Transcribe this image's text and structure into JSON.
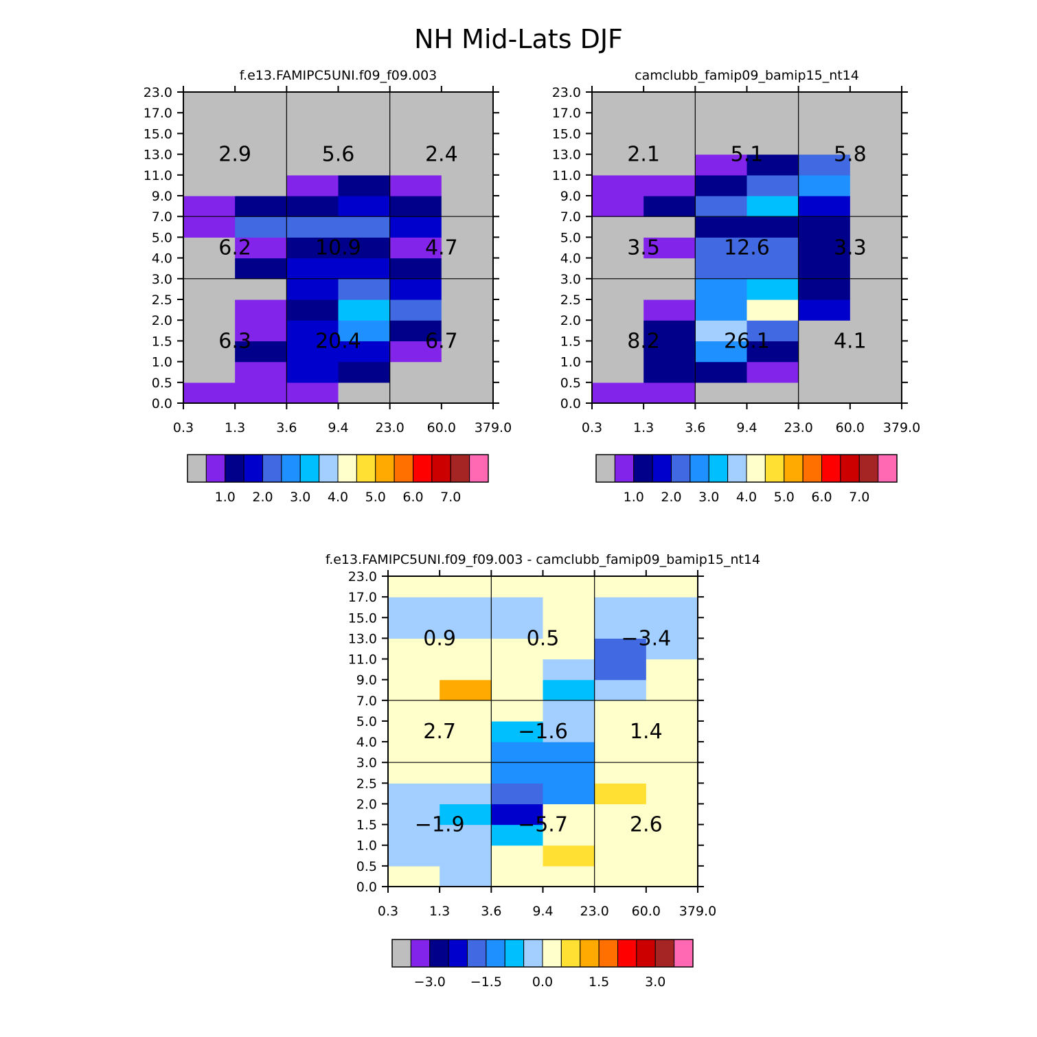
{
  "figure": {
    "title": "NH Mid-Lats DJF"
  },
  "colors": {
    "palette": [
      "#bebebe",
      "#8224ea",
      "#00008b",
      "#0000cd",
      "#4169e1",
      "#1e90ff",
      "#00bfff",
      "#a2cfff",
      "#ffffcc",
      "#ffe033",
      "#ffaa00",
      "#ff7000",
      "#ff0000",
      "#cd0000",
      "#a52424",
      "#ff69b4"
    ]
  },
  "chart_data": [
    {
      "type": "heatmap",
      "title": "f.e13.FAMIPC5UNI.f09_f09.003",
      "x_tick_labels": [
        "0.3",
        "1.3",
        "3.6",
        "9.4",
        "23.0",
        "60.0",
        "379.0"
      ],
      "y_tick_labels": [
        "0.0",
        "0.5",
        "1.0",
        "1.5",
        "2.0",
        "2.5",
        "3.0",
        "4.0",
        "5.0",
        "7.0",
        "9.0",
        "11.0",
        "13.0",
        "15.0",
        "17.0",
        "23.0"
      ],
      "cell_color_index_rows_bottom_to_top": [
        [
          1,
          1,
          1,
          0,
          0,
          0
        ],
        [
          0,
          1,
          3,
          2,
          0,
          0
        ],
        [
          0,
          2,
          3,
          3,
          1,
          0
        ],
        [
          0,
          1,
          3,
          5,
          2,
          0
        ],
        [
          0,
          1,
          2,
          6,
          4,
          0
        ],
        [
          0,
          0,
          3,
          4,
          3,
          0
        ],
        [
          0,
          2,
          3,
          3,
          2,
          0
        ],
        [
          0,
          1,
          2,
          2,
          1,
          0
        ],
        [
          1,
          4,
          4,
          4,
          3,
          0
        ],
        [
          1,
          2,
          2,
          3,
          2,
          0
        ],
        [
          0,
          0,
          1,
          2,
          1,
          0
        ],
        [
          0,
          0,
          0,
          0,
          0,
          0
        ],
        [
          0,
          0,
          0,
          0,
          0,
          0
        ],
        [
          0,
          0,
          0,
          0,
          0,
          0
        ],
        [
          0,
          0,
          0,
          0,
          0,
          0
        ]
      ],
      "region_values_bottom_to_top": [
        [
          "6.3",
          "20.4",
          "6.7"
        ],
        [
          "6.2",
          "10.9",
          "4.7"
        ],
        [
          "2.9",
          "5.6",
          "2.4"
        ]
      ],
      "colorbar_labels": [
        "1.0",
        "2.0",
        "3.0",
        "4.0",
        "5.0",
        "6.0",
        "7.0"
      ]
    },
    {
      "type": "heatmap",
      "title": "camclubb_famip09_bamip15_nt14",
      "x_tick_labels": [
        "0.3",
        "1.3",
        "3.6",
        "9.4",
        "23.0",
        "60.0",
        "379.0"
      ],
      "y_tick_labels": [
        "0.0",
        "0.5",
        "1.0",
        "1.5",
        "2.0",
        "2.5",
        "3.0",
        "4.0",
        "5.0",
        "7.0",
        "9.0",
        "11.0",
        "13.0",
        "15.0",
        "17.0",
        "23.0"
      ],
      "cell_color_index_rows_bottom_to_top": [
        [
          1,
          1,
          0,
          0,
          0,
          0
        ],
        [
          0,
          2,
          2,
          1,
          0,
          0
        ],
        [
          0,
          2,
          5,
          2,
          0,
          0
        ],
        [
          0,
          2,
          7,
          4,
          0,
          0
        ],
        [
          0,
          1,
          5,
          8,
          3,
          0
        ],
        [
          0,
          0,
          5,
          6,
          2,
          0
        ],
        [
          0,
          0,
          4,
          4,
          2,
          0
        ],
        [
          0,
          1,
          4,
          4,
          2,
          0
        ],
        [
          0,
          0,
          2,
          2,
          2,
          0
        ],
        [
          1,
          2,
          4,
          6,
          3,
          0
        ],
        [
          1,
          1,
          2,
          4,
          5,
          0
        ],
        [
          0,
          0,
          1,
          2,
          4,
          0
        ],
        [
          0,
          0,
          0,
          0,
          0,
          0
        ],
        [
          0,
          0,
          0,
          0,
          0,
          0
        ],
        [
          0,
          0,
          0,
          0,
          0,
          0
        ]
      ],
      "region_values_bottom_to_top": [
        [
          "8.2",
          "26.1",
          "4.1"
        ],
        [
          "3.5",
          "12.6",
          "3.3"
        ],
        [
          "2.1",
          "5.1",
          "5.8"
        ]
      ],
      "colorbar_labels": [
        "1.0",
        "2.0",
        "3.0",
        "4.0",
        "5.0",
        "6.0",
        "7.0"
      ]
    },
    {
      "type": "heatmap",
      "title": "f.e13.FAMIPC5UNI.f09_f09.003 - camclubb_famip09_bamip15_nt14",
      "x_tick_labels": [
        "0.3",
        "1.3",
        "3.6",
        "9.4",
        "23.0",
        "60.0",
        "379.0"
      ],
      "y_tick_labels": [
        "0.0",
        "0.5",
        "1.0",
        "1.5",
        "2.0",
        "2.5",
        "3.0",
        "4.0",
        "5.0",
        "7.0",
        "9.0",
        "11.0",
        "13.0",
        "15.0",
        "17.0",
        "23.0"
      ],
      "cell_color_index_rows_bottom_to_top": [
        [
          8,
          7,
          8,
          8,
          8,
          8
        ],
        [
          7,
          7,
          8,
          9,
          8,
          8
        ],
        [
          7,
          7,
          6,
          8,
          8,
          8
        ],
        [
          7,
          6,
          3,
          8,
          8,
          8
        ],
        [
          7,
          7,
          4,
          5,
          9,
          8
        ],
        [
          8,
          8,
          5,
          5,
          8,
          8
        ],
        [
          8,
          8,
          5,
          5,
          8,
          8
        ],
        [
          8,
          8,
          6,
          7,
          8,
          8
        ],
        [
          8,
          8,
          8,
          7,
          8,
          8
        ],
        [
          8,
          10,
          8,
          6,
          7,
          8
        ],
        [
          8,
          8,
          8,
          7,
          4,
          8
        ],
        [
          8,
          8,
          8,
          8,
          4,
          7
        ],
        [
          7,
          7,
          7,
          8,
          7,
          7
        ],
        [
          7,
          7,
          7,
          8,
          7,
          7
        ],
        [
          8,
          8,
          8,
          8,
          8,
          8
        ]
      ],
      "region_values_bottom_to_top": [
        [
          "−1.9",
          "−5.7",
          "2.6"
        ],
        [
          "2.7",
          "−1.6",
          "1.4"
        ],
        [
          "0.9",
          "0.5",
          "−3.4"
        ]
      ],
      "colorbar_labels": [
        "−3.0",
        "−1.5",
        "0.0",
        "1.5",
        "3.0"
      ]
    }
  ]
}
